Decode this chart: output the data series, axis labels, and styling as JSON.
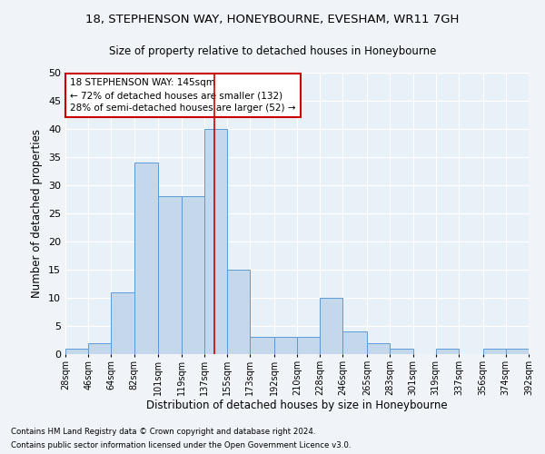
{
  "title": "18, STEPHENSON WAY, HONEYBOURNE, EVESHAM, WR11 7GH",
  "subtitle": "Size of property relative to detached houses in Honeybourne",
  "xlabel": "Distribution of detached houses by size in Honeybourne",
  "ylabel": "Number of detached properties",
  "footnote1": "Contains HM Land Registry data © Crown copyright and database right 2024.",
  "footnote2": "Contains public sector information licensed under the Open Government Licence v3.0.",
  "annotation_line1": "18 STEPHENSON WAY: 145sqm",
  "annotation_line2": "← 72% of detached houses are smaller (132)",
  "annotation_line3": "28% of semi-detached houses are larger (52) →",
  "property_size": 145,
  "bin_edges": [
    28,
    46,
    64,
    82,
    101,
    119,
    137,
    155,
    173,
    192,
    210,
    228,
    246,
    265,
    283,
    301,
    319,
    337,
    356,
    374,
    392
  ],
  "bar_heights": [
    1,
    2,
    11,
    34,
    28,
    28,
    40,
    15,
    3,
    3,
    3,
    10,
    4,
    2,
    1,
    0,
    1,
    0,
    1,
    1
  ],
  "bar_color": "#c5d8eb",
  "bar_edge_color": "#5b9bd5",
  "vline_color": "#cc0000",
  "background_color": "#e8f0f8",
  "fig_background_color": "#f0f4f8",
  "grid_color": "#ffffff",
  "ylim": [
    0,
    50
  ],
  "yticks": [
    0,
    5,
    10,
    15,
    20,
    25,
    30,
    35,
    40,
    45,
    50
  ]
}
